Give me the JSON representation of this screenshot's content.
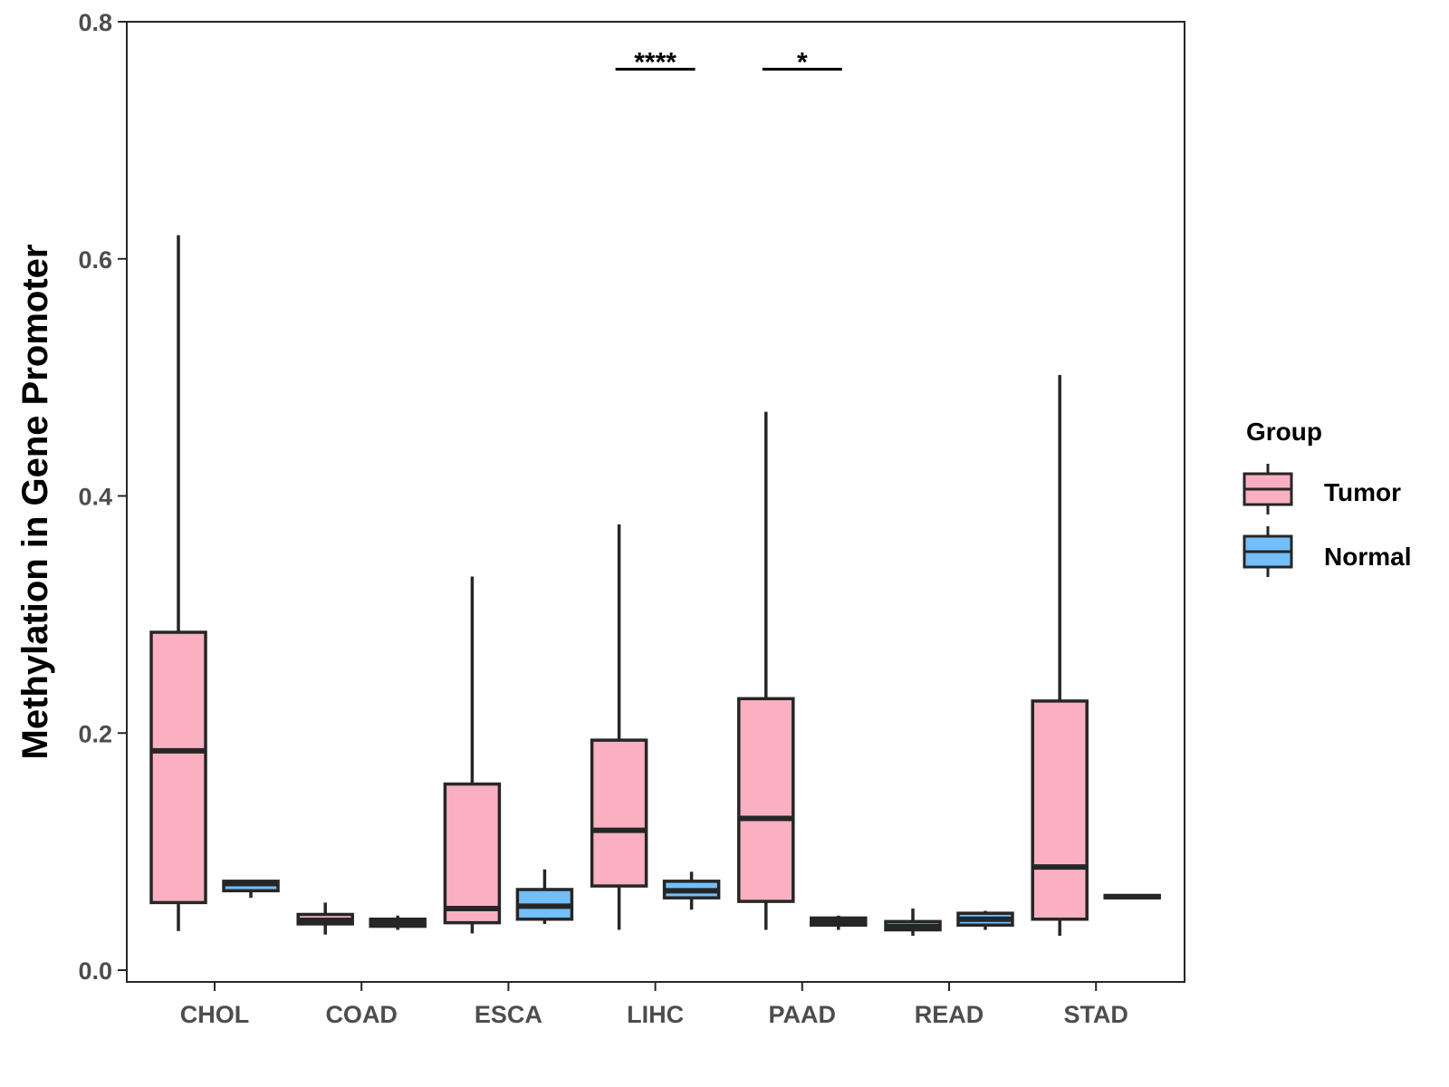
{
  "colors": {
    "tumor": "#FBB0C2",
    "normal": "#73BFFC",
    "stroke": "#262626",
    "axis_text": "#4d4d4d"
  },
  "chart_data": {
    "type": "boxplot",
    "title": "",
    "xlabel": "",
    "ylabel": "Methylation in Gene Promoter",
    "ylim": [
      0.0,
      0.8
    ],
    "y_ticks": [
      0.0,
      0.2,
      0.4,
      0.6,
      0.8
    ],
    "y_tick_labels": [
      "0.0",
      "0.2",
      "0.4",
      "0.6",
      "0.8"
    ],
    "categories": [
      "CHOL",
      "COAD",
      "ESCA",
      "LIHC",
      "PAAD",
      "READ",
      "STAD"
    ],
    "legend": {
      "title": "Group",
      "position": "right",
      "entries": [
        "Tumor",
        "Normal"
      ]
    },
    "series": [
      {
        "name": "Tumor",
        "boxes": [
          {
            "category": "CHOL",
            "min": 0.033,
            "q1": 0.057,
            "median": 0.185,
            "q3": 0.285,
            "max": 0.62
          },
          {
            "category": "COAD",
            "min": 0.03,
            "q1": 0.039,
            "median": 0.042,
            "q3": 0.047,
            "max": 0.057
          },
          {
            "category": "ESCA",
            "min": 0.031,
            "q1": 0.04,
            "median": 0.052,
            "q3": 0.157,
            "max": 0.332
          },
          {
            "category": "LIHC",
            "min": 0.034,
            "q1": 0.071,
            "median": 0.118,
            "q3": 0.194,
            "max": 0.376
          },
          {
            "category": "PAAD",
            "min": 0.034,
            "q1": 0.058,
            "median": 0.128,
            "q3": 0.229,
            "max": 0.471
          },
          {
            "category": "READ",
            "min": 0.029,
            "q1": 0.034,
            "median": 0.037,
            "q3": 0.041,
            "max": 0.052
          },
          {
            "category": "STAD",
            "min": 0.029,
            "q1": 0.043,
            "median": 0.087,
            "q3": 0.227,
            "max": 0.502
          }
        ]
      },
      {
        "name": "Normal",
        "boxes": [
          {
            "category": "CHOL",
            "min": 0.061,
            "q1": 0.067,
            "median": 0.073,
            "q3": 0.075,
            "max": 0.075
          },
          {
            "category": "COAD",
            "min": 0.034,
            "q1": 0.037,
            "median": 0.04,
            "q3": 0.043,
            "max": 0.046
          },
          {
            "category": "ESCA",
            "min": 0.039,
            "q1": 0.043,
            "median": 0.054,
            "q3": 0.068,
            "max": 0.085
          },
          {
            "category": "LIHC",
            "min": 0.051,
            "q1": 0.061,
            "median": 0.067,
            "q3": 0.075,
            "max": 0.083
          },
          {
            "category": "PAAD",
            "min": 0.034,
            "q1": 0.038,
            "median": 0.041,
            "q3": 0.044,
            "max": 0.046
          },
          {
            "category": "READ",
            "min": 0.034,
            "q1": 0.038,
            "median": 0.043,
            "q3": 0.048,
            "max": 0.05
          },
          {
            "category": "STAD",
            "min": 0.06,
            "q1": 0.061,
            "median": 0.062,
            "q3": 0.063,
            "max": 0.064
          }
        ]
      }
    ],
    "annotations": [
      {
        "category": "LIHC",
        "label": "****",
        "y": 0.76
      },
      {
        "category": "PAAD",
        "label": "*",
        "y": 0.76
      }
    ],
    "grid": false
  }
}
